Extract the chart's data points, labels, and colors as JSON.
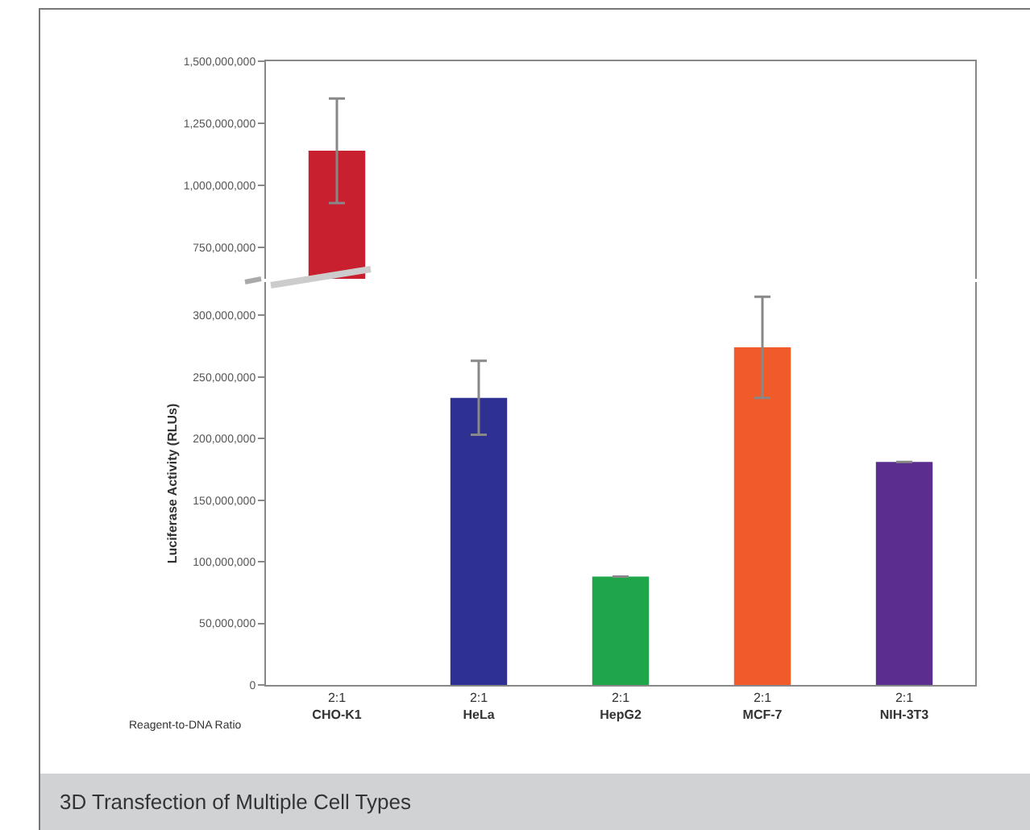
{
  "chart_data": [
    {
      "type": "bar",
      "values": [
        1140000000,
        null,
        null,
        null,
        null
      ],
      "errors": [
        210000000,
        null,
        null,
        null,
        null
      ],
      "colors": [
        "#c8202f",
        "#2e3192",
        "#1fa64a",
        "#f15a29",
        "#5b2d8e"
      ],
      "ylim": [
        625000000,
        1500000000
      ],
      "yticks": [
        {
          "value": 750000000,
          "label": "750,000,000"
        },
        {
          "value": 1000000000,
          "label": "1,000,000,000"
        },
        {
          "value": 1250000000,
          "label": "1,250,000,000"
        },
        {
          "value": 1500000000,
          "label": "1,500,000,000"
        }
      ],
      "tick_labels": "y",
      "grid": false
    },
    {
      "type": "bar",
      "categories": [
        "2:1\nCHO-K1",
        "2:1\nHeLa",
        "2:1\nHepG2",
        "2:1\nMCF-7",
        "2:1\nNIH-3T3"
      ],
      "values": [
        null,
        233000000,
        88000000,
        274000000,
        181000000
      ],
      "errors": [
        null,
        30000000,
        null,
        41000000,
        null
      ],
      "colors": [
        "#c8202f",
        "#2e3192",
        "#1fa64a",
        "#f15a29",
        "#5b2d8e"
      ],
      "ylim": [
        0,
        327000000
      ],
      "yticks": [
        0,
        {
          "value": 50000000,
          "label": "50,000,000"
        },
        {
          "value": 100000000,
          "label": "100,000,000"
        },
        {
          "value": 150000000,
          "label": "150,000,000"
        },
        {
          "value": 200000000,
          "label": "200,000,000"
        },
        {
          "value": 250000000,
          "label": "250,000,000"
        },
        {
          "value": 300000000,
          "label": "300,000,000"
        }
      ],
      "ylabel": "Luciferase Activity (RLUs)",
      "annotations": [
        "Reagent-to-DNA Ratio",
        "3D Transfection of Multiple Cell Types"
      ],
      "grid": false
    }
  ]
}
